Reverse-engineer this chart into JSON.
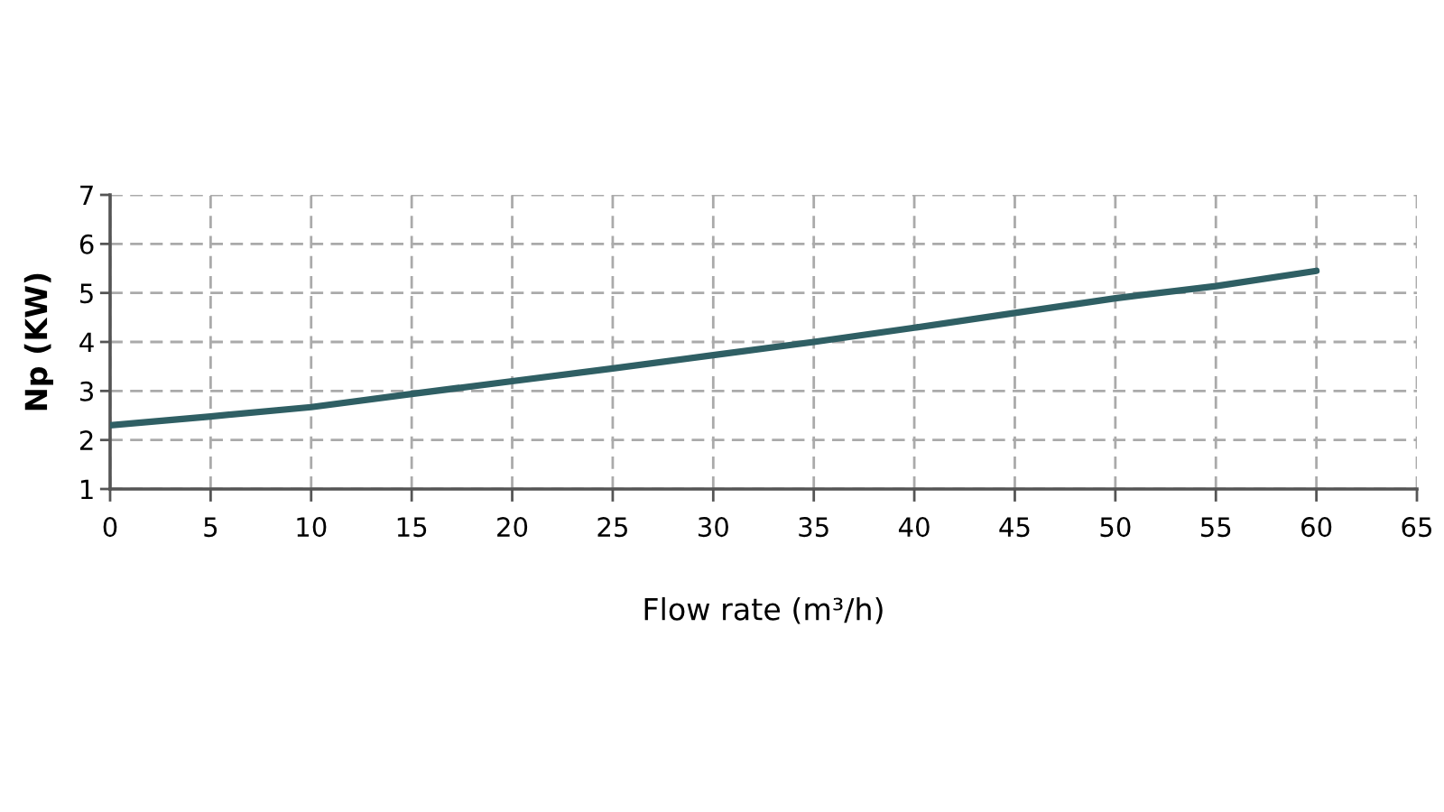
{
  "chart_data": {
    "type": "line",
    "xlabel": "Flow rate (m³/h)",
    "ylabel": "Np (KW)",
    "x": [
      0,
      5,
      10,
      15,
      20,
      25,
      30,
      35,
      40,
      45,
      50,
      55,
      60
    ],
    "series": [
      {
        "color": "#2f5f64",
        "values": [
          2.3,
          2.48,
          2.67,
          2.94,
          3.2,
          3.46,
          3.73,
          4.0,
          4.29,
          4.59,
          4.89,
          5.14,
          5.45
        ]
      }
    ],
    "xlim": [
      0,
      65
    ],
    "xticks": [
      0,
      5,
      10,
      15,
      20,
      25,
      30,
      35,
      40,
      45,
      50,
      55,
      60,
      65
    ],
    "ylim": [
      1,
      7
    ],
    "yticks": [
      1,
      2,
      3,
      4,
      5,
      6,
      7
    ],
    "grid": true,
    "line_style": "solid"
  }
}
